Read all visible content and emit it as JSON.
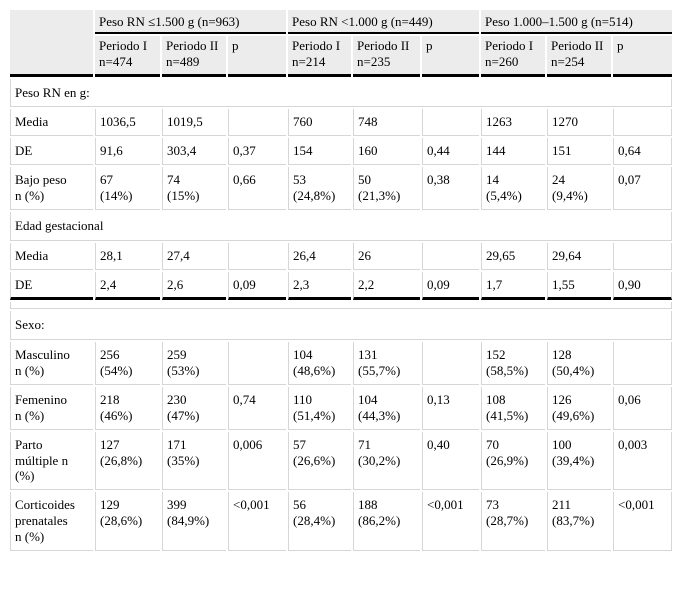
{
  "table": {
    "period1_label": "Periodo I",
    "period2_label": "Periodo II",
    "p_label": "p",
    "colors": {
      "header_bg": "#ececec",
      "grid_line": "#d6d6d6",
      "rule_line": "#000000"
    },
    "groups": [
      {
        "title": "Peso RN ≤1.500 g (n=963)",
        "n1": "n=474",
        "n2": "n=489"
      },
      {
        "title": "Peso RN <1.000 g (n=449)",
        "n1": "n=214",
        "n2": "n=235"
      },
      {
        "title": "Peso 1.000–1.500 g (n=514)",
        "n1": "n=260",
        "n2": "n=254"
      }
    ],
    "sections": [
      {
        "title": "Peso RN en g:",
        "rows": [
          {
            "label": "Media",
            "cells": [
              "1036,5",
              "1019,5",
              "",
              "760",
              "748",
              "",
              "1263",
              "1270",
              ""
            ]
          },
          {
            "label": "DE",
            "cells": [
              "91,6",
              "303,4",
              "0,37",
              "154",
              "160",
              "0,44",
              "144",
              "151",
              "0,64"
            ]
          },
          {
            "label": "Bajo peso\nn (%)",
            "cells": [
              "67\n(14%)",
              "74\n(15%)",
              "0,66",
              "53\n(24,8%)",
              "50\n(21,3%)",
              "0,38",
              "14\n(5,4%)",
              "24\n(9,4%)",
              "0,07"
            ]
          }
        ]
      },
      {
        "title": "Edad gestacional",
        "rows": [
          {
            "label": "Media",
            "cells": [
              "28,1",
              "27,4",
              "",
              "26,4",
              "26",
              "",
              "29,65",
              "29,64",
              ""
            ]
          },
          {
            "label": "DE",
            "cells": [
              "2,4",
              "2,6",
              "0,09",
              "2,3",
              "2,2",
              "0,09",
              "1,7",
              "1,55",
              "0,90"
            ]
          }
        ]
      },
      {
        "title": "Sexo:",
        "rows": [
          {
            "label": "Masculino\nn (%)",
            "cells": [
              "256\n(54%)",
              "259\n(53%)",
              "",
              "104\n(48,6%)",
              "131\n(55,7%)",
              "",
              "152\n(58,5%)",
              "128\n(50,4%)",
              ""
            ]
          },
          {
            "label": "Femenino\nn (%)",
            "cells": [
              "218\n(46%)",
              "230\n(47%)",
              "0,74",
              "110\n(51,4%)",
              "104\n(44,3%)",
              "0,13",
              "108\n(41,5%)",
              "126\n(49,6%)",
              "0,06"
            ]
          },
          {
            "label": "Parto\nmúltiple n\n(%)",
            "cells": [
              "127\n(26,8%)",
              "171\n(35%)",
              "0,006",
              "57\n(26,6%)",
              "71\n(30,2%)",
              "0,40",
              "70\n(26,9%)",
              "100\n(39,4%)",
              "0,003"
            ]
          },
          {
            "label": "Corticoides\nprenatales\nn (%)",
            "cells": [
              "129\n(28,6%)",
              "399\n(84,9%)",
              "<0,001",
              "56\n(28,4%)",
              "188\n(86,2%)",
              "<0,001",
              "73\n(28,7%)",
              "211\n(83,7%)",
              "<0,001"
            ]
          }
        ]
      }
    ]
  }
}
